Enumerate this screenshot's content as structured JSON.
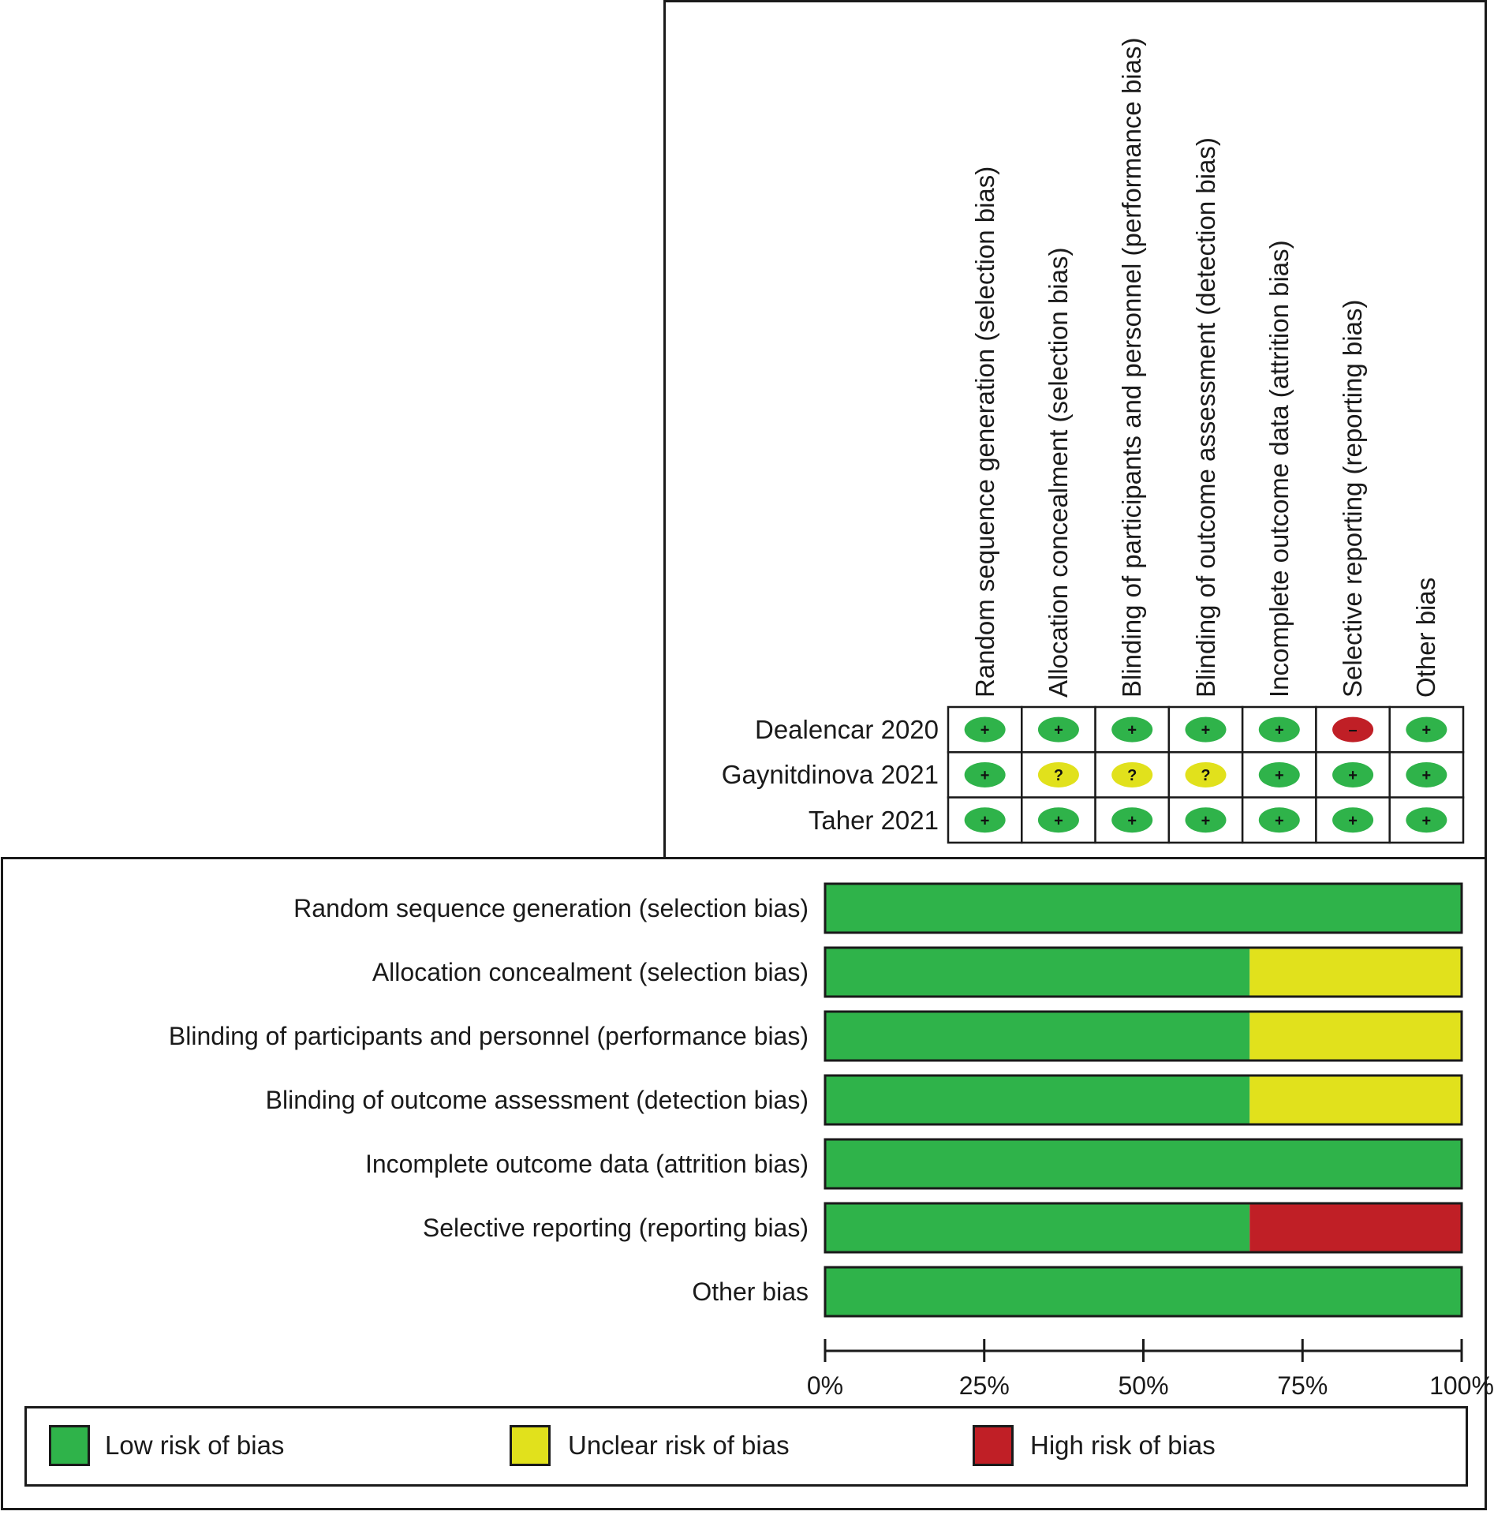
{
  "colors": {
    "low": "#2fb34a",
    "unclear": "#e1e11c",
    "high": "#c01f26",
    "line": "#1a1a1a"
  },
  "symbols": {
    "low": "+",
    "unclear": "?",
    "high": "–"
  },
  "summary": {
    "domains": [
      "Random sequence generation (selection bias)",
      "Allocation concealment (selection bias)",
      "Blinding of participants and personnel (performance bias)",
      "Blinding of outcome assessment (detection bias)",
      "Incomplete outcome data (attrition bias)",
      "Selective reporting (reporting bias)",
      "Other bias"
    ],
    "studies": [
      {
        "name": "Dealencar 2020",
        "judgements": [
          "low",
          "low",
          "low",
          "low",
          "low",
          "high",
          "low"
        ]
      },
      {
        "name": "Gaynitdinova 2021",
        "judgements": [
          "low",
          "unclear",
          "unclear",
          "unclear",
          "low",
          "low",
          "low"
        ]
      },
      {
        "name": "Taher 2021",
        "judgements": [
          "low",
          "low",
          "low",
          "low",
          "low",
          "low",
          "low"
        ]
      }
    ]
  },
  "chart_data": {
    "type": "bar",
    "orientation": "horizontal-stacked",
    "title": "",
    "xlabel": "",
    "ylabel": "",
    "xlim": [
      0,
      100
    ],
    "x_unit": "%",
    "x_ticks": [
      "0%",
      "25%",
      "50%",
      "75%",
      "100%"
    ],
    "categories": [
      "Random sequence generation (selection bias)",
      "Allocation concealment (selection bias)",
      "Blinding of participants and personnel (performance bias)",
      "Blinding of outcome assessment (detection bias)",
      "Incomplete outcome data (attrition bias)",
      "Selective reporting (reporting bias)",
      "Other bias"
    ],
    "series": [
      {
        "name": "Low risk of bias",
        "key": "low",
        "values": [
          100,
          66.7,
          66.7,
          66.7,
          100,
          66.7,
          100
        ]
      },
      {
        "name": "Unclear risk of bias",
        "key": "unclear",
        "values": [
          0,
          33.3,
          33.3,
          33.3,
          0,
          0,
          0
        ]
      },
      {
        "name": "High risk of bias",
        "key": "high",
        "values": [
          0,
          0,
          0,
          0,
          0,
          33.3,
          0
        ]
      }
    ],
    "legend": {
      "position": "bottom",
      "items": [
        "Low risk of bias",
        "Unclear risk of bias",
        "High risk of bias"
      ]
    },
    "grid": false
  }
}
